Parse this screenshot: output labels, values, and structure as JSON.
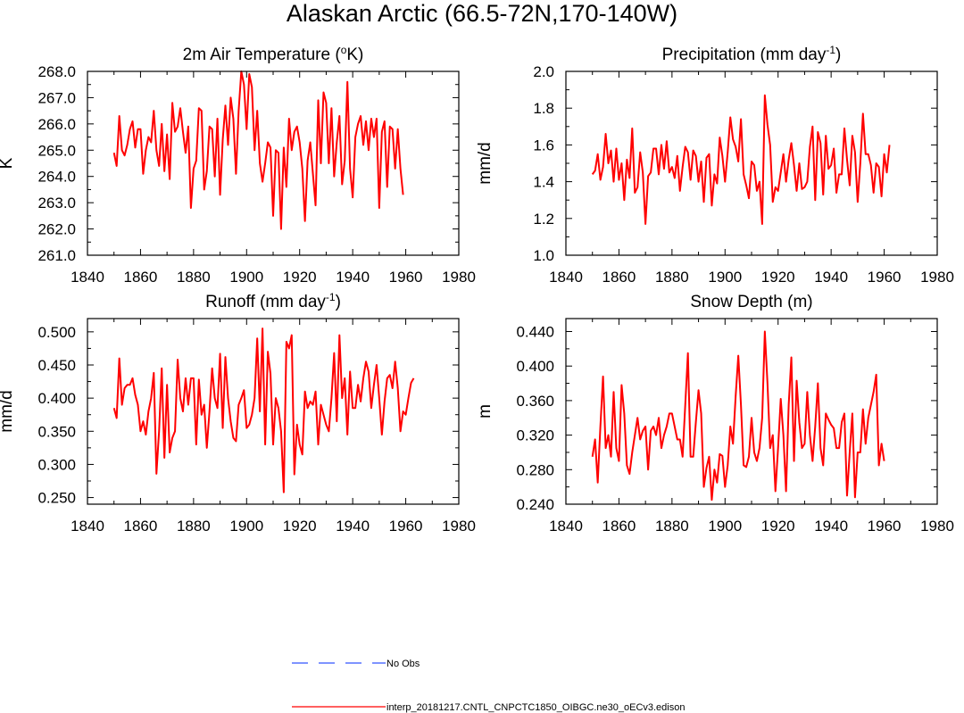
{
  "title": "Alaskan Arctic (66.5-72N,170-140W)",
  "chart_data": [
    {
      "type": "line",
      "id": "temperature",
      "title_prefix": "2m Air Temperature (",
      "title_sup": "o",
      "title_suffix": "K)",
      "ylabel": "K",
      "xlim": [
        1840,
        1980
      ],
      "ylim": [
        261.0,
        268.0
      ],
      "xticks": [
        1840,
        1860,
        1880,
        1900,
        1920,
        1940,
        1960,
        1980
      ],
      "yticks": [
        "261.0",
        "262.0",
        "263.0",
        "264.0",
        "265.0",
        "266.0",
        "267.0",
        "268.0"
      ],
      "x_start": 1850,
      "series": [
        {
          "name": "interp_20181217.CNTL_CNPCTC1850_OIBGC.ne30_oECv3.edison",
          "color": "#ff0000",
          "values": [
            264.9,
            264.4,
            266.3,
            265.0,
            264.8,
            265.2,
            265.8,
            266.1,
            265.1,
            265.8,
            265.8,
            264.1,
            265.0,
            265.5,
            265.3,
            266.5,
            265.0,
            264.4,
            266.0,
            264.2,
            265.6,
            263.9,
            266.8,
            265.7,
            265.9,
            266.6,
            265.7,
            264.9,
            265.9,
            262.8,
            264.3,
            264.6,
            266.6,
            266.5,
            263.5,
            264.2,
            265.9,
            265.8,
            264.0,
            266.2,
            263.3,
            265.4,
            266.7,
            265.2,
            267.0,
            266.2,
            264.1,
            266.5,
            268.0,
            267.5,
            265.8,
            267.9,
            267.4,
            265.0,
            266.5,
            264.5,
            263.8,
            264.5,
            265.3,
            265.1,
            262.5,
            265.0,
            264.9,
            262.0,
            265.1,
            263.6,
            266.2,
            265.0,
            265.7,
            265.9,
            265.3,
            264.3,
            262.3,
            264.6,
            265.3,
            264.1,
            262.9,
            266.9,
            264.5,
            267.2,
            266.8,
            264.5,
            266.6,
            264.0,
            265.3,
            266.3,
            263.7,
            264.6,
            267.6,
            264.3,
            263.2,
            265.5,
            266.0,
            266.3,
            265.2,
            266.1,
            265.0,
            266.2,
            265.5,
            266.2,
            262.8,
            265.7,
            266.1,
            263.6,
            265.9,
            265.8,
            264.3,
            265.8,
            264.3,
            263.3
          ]
        }
      ]
    },
    {
      "type": "line",
      "id": "precipitation",
      "title_prefix": "Precipitation (mm day",
      "title_sup": "-1",
      "title_suffix": ")",
      "ylabel": "mm/d",
      "xlim": [
        1840,
        1980
      ],
      "ylim": [
        1.0,
        2.0
      ],
      "xticks": [
        1840,
        1860,
        1880,
        1900,
        1920,
        1940,
        1960,
        1980
      ],
      "yticks": [
        "1.0",
        "1.2",
        "1.4",
        "1.6",
        "1.8",
        "2.0"
      ],
      "x_start": 1850,
      "series": [
        {
          "name": "interp_20181217.CNTL_CNPCTC1850_OIBGC.ne30_oECv3.edison",
          "color": "#ff0000",
          "values": [
            1.44,
            1.46,
            1.55,
            1.41,
            1.48,
            1.66,
            1.5,
            1.57,
            1.4,
            1.58,
            1.41,
            1.5,
            1.3,
            1.52,
            1.42,
            1.69,
            1.34,
            1.37,
            1.56,
            1.45,
            1.17,
            1.43,
            1.45,
            1.58,
            1.58,
            1.44,
            1.6,
            1.47,
            1.62,
            1.45,
            1.48,
            1.42,
            1.54,
            1.35,
            1.48,
            1.59,
            1.56,
            1.41,
            1.57,
            1.54,
            1.4,
            1.51,
            1.29,
            1.53,
            1.55,
            1.27,
            1.44,
            1.39,
            1.64,
            1.54,
            1.4,
            1.56,
            1.75,
            1.63,
            1.59,
            1.51,
            1.74,
            1.44,
            1.38,
            1.31,
            1.51,
            1.49,
            1.35,
            1.4,
            1.17,
            1.87,
            1.71,
            1.6,
            1.29,
            1.37,
            1.35,
            1.45,
            1.55,
            1.4,
            1.52,
            1.61,
            1.49,
            1.35,
            1.5,
            1.36,
            1.37,
            1.4,
            1.59,
            1.7,
            1.3,
            1.67,
            1.61,
            1.33,
            1.65,
            1.47,
            1.49,
            1.58,
            1.34,
            1.44,
            1.44,
            1.69,
            1.52,
            1.38,
            1.65,
            1.56,
            1.29,
            1.5,
            1.77,
            1.55,
            1.55,
            1.49,
            1.34,
            1.5,
            1.48,
            1.32,
            1.55,
            1.45,
            1.6
          ]
        }
      ]
    },
    {
      "type": "line",
      "id": "runoff",
      "title_prefix": "Runoff (mm day",
      "title_sup": "-1",
      "title_suffix": ")",
      "ylabel": "mm/d",
      "xlim": [
        1840,
        1980
      ],
      "ylim": [
        0.24,
        0.52
      ],
      "xticks": [
        1840,
        1860,
        1880,
        1900,
        1920,
        1940,
        1960,
        1980
      ],
      "yticks": [
        "0.250",
        "0.300",
        "0.350",
        "0.400",
        "0.450",
        "0.500"
      ],
      "x_start": 1850,
      "series": [
        {
          "name": "interp_20181217.CNTL_CNPCTC1850_OIBGC.ne30_oECv3.edison",
          "color": "#ff0000",
          "values": [
            0.385,
            0.37,
            0.46,
            0.39,
            0.415,
            0.42,
            0.42,
            0.43,
            0.405,
            0.39,
            0.35,
            0.365,
            0.345,
            0.38,
            0.4,
            0.438,
            0.286,
            0.35,
            0.445,
            0.31,
            0.42,
            0.318,
            0.34,
            0.35,
            0.458,
            0.4,
            0.38,
            0.43,
            0.39,
            0.43,
            0.43,
            0.33,
            0.428,
            0.375,
            0.39,
            0.325,
            0.38,
            0.445,
            0.4,
            0.385,
            0.467,
            0.355,
            0.462,
            0.4,
            0.365,
            0.34,
            0.335,
            0.39,
            0.4,
            0.412,
            0.355,
            0.36,
            0.375,
            0.4,
            0.49,
            0.38,
            0.505,
            0.33,
            0.47,
            0.437,
            0.33,
            0.4,
            0.385,
            0.35,
            0.258,
            0.485,
            0.475,
            0.495,
            0.285,
            0.36,
            0.33,
            0.315,
            0.41,
            0.385,
            0.395,
            0.39,
            0.41,
            0.33,
            0.39,
            0.375,
            0.36,
            0.35,
            0.4,
            0.468,
            0.365,
            0.495,
            0.4,
            0.43,
            0.345,
            0.44,
            0.385,
            0.385,
            0.42,
            0.395,
            0.43,
            0.455,
            0.44,
            0.385,
            0.42,
            0.45,
            0.4,
            0.345,
            0.395,
            0.43,
            0.435,
            0.415,
            0.455,
            0.415,
            0.35,
            0.38,
            0.375,
            0.4,
            0.423,
            0.43
          ]
        }
      ]
    },
    {
      "type": "line",
      "id": "snow",
      "title_prefix": "Snow Depth (m)",
      "title_sup": "",
      "title_suffix": "",
      "ylabel": "m",
      "xlim": [
        1840,
        1980
      ],
      "ylim": [
        0.24,
        0.455
      ],
      "xticks": [
        1840,
        1860,
        1880,
        1900,
        1920,
        1940,
        1960,
        1980
      ],
      "yticks": [
        "0.240",
        "0.280",
        "0.320",
        "0.360",
        "0.400",
        "0.440"
      ],
      "x_start": 1850,
      "series": [
        {
          "name": "interp_20181217.CNTL_CNPCTC1850_OIBGC.ne30_oECv3.edison",
          "color": "#ff0000",
          "values": [
            0.295,
            0.315,
            0.265,
            0.33,
            0.388,
            0.305,
            0.32,
            0.295,
            0.37,
            0.305,
            0.29,
            0.378,
            0.345,
            0.285,
            0.275,
            0.3,
            0.32,
            0.34,
            0.315,
            0.325,
            0.33,
            0.28,
            0.325,
            0.33,
            0.32,
            0.34,
            0.305,
            0.32,
            0.33,
            0.345,
            0.345,
            0.33,
            0.315,
            0.315,
            0.295,
            0.355,
            0.415,
            0.295,
            0.295,
            0.335,
            0.372,
            0.345,
            0.26,
            0.282,
            0.295,
            0.245,
            0.28,
            0.265,
            0.298,
            0.296,
            0.26,
            0.285,
            0.33,
            0.31,
            0.365,
            0.412,
            0.355,
            0.285,
            0.283,
            0.295,
            0.34,
            0.3,
            0.29,
            0.305,
            0.34,
            0.44,
            0.38,
            0.305,
            0.32,
            0.255,
            0.305,
            0.362,
            0.32,
            0.255,
            0.355,
            0.41,
            0.29,
            0.383,
            0.335,
            0.305,
            0.31,
            0.37,
            0.32,
            0.29,
            0.33,
            0.38,
            0.305,
            0.285,
            0.345,
            0.338,
            0.332,
            0.328,
            0.305,
            0.305,
            0.335,
            0.345,
            0.25,
            0.3,
            0.345,
            0.248,
            0.3,
            0.3,
            0.35,
            0.31,
            0.34,
            0.355,
            0.37,
            0.39,
            0.285,
            0.31,
            0.29
          ]
        }
      ]
    }
  ],
  "legend": {
    "no_obs_label": "No Obs",
    "no_obs_color": "#3355ff",
    "model_label": "interp_20181217.CNTL_CNPCTC1850_OIBGC.ne30_oECv3.edison",
    "model_color": "#ff0000"
  }
}
